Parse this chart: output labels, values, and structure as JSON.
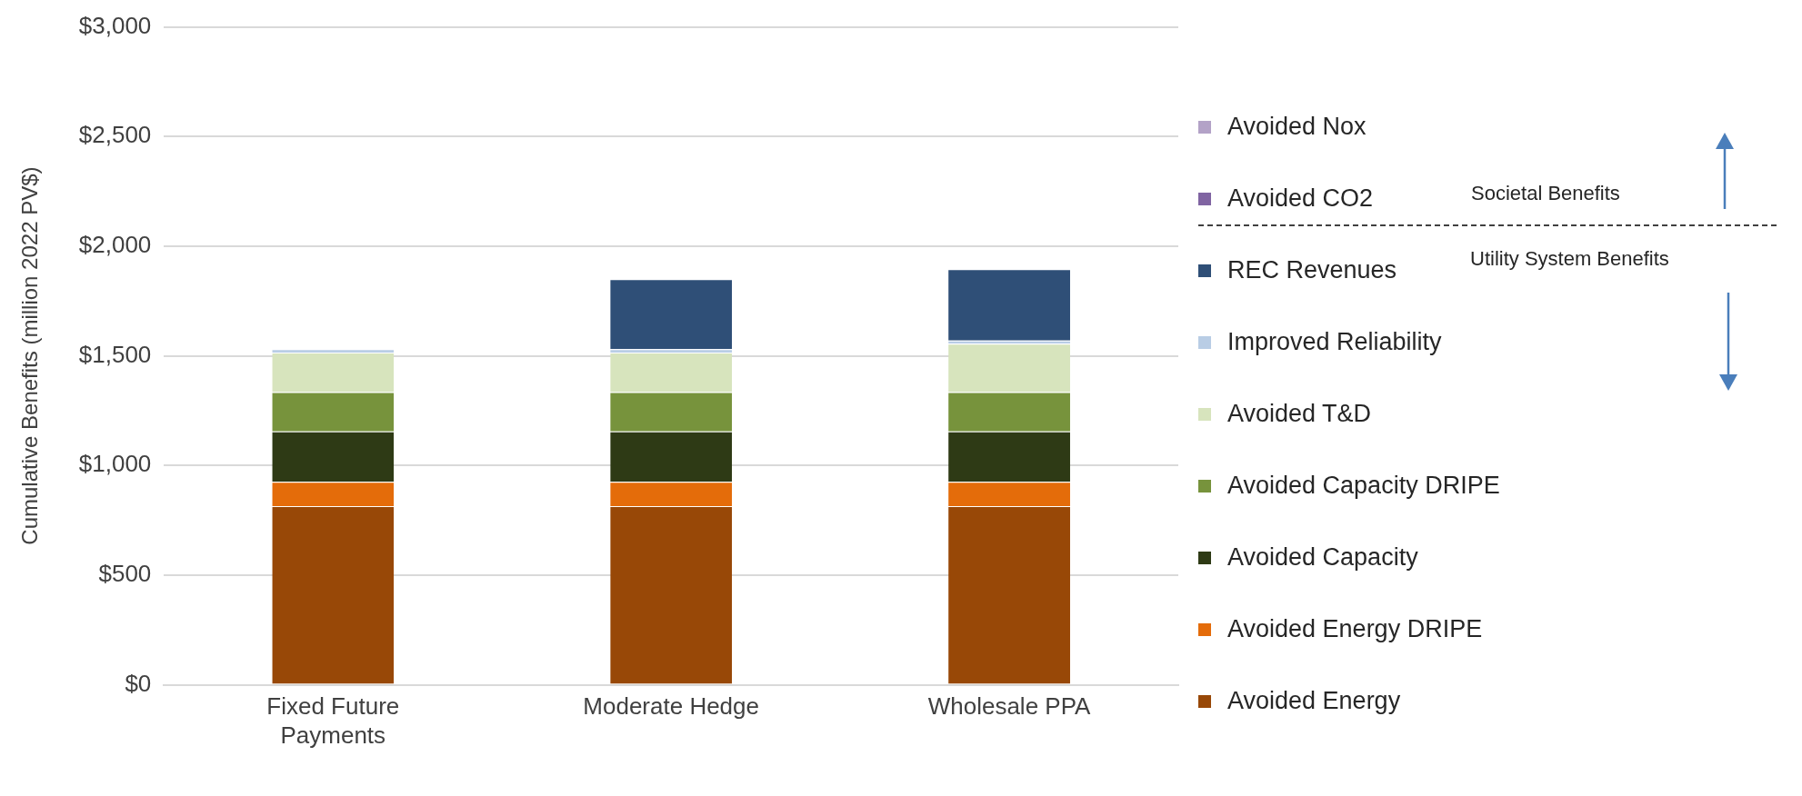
{
  "chart_data": {
    "type": "bar",
    "stacked": true,
    "ylabel": "Cumulative Benefits (million 2022 PV$)",
    "categories": [
      "Fixed Future Payments",
      "Moderate Hedge",
      "Wholesale PPA"
    ],
    "series": [
      {
        "name": "Avoided Energy",
        "color": "#984807",
        "values": [
          815,
          815,
          815
        ]
      },
      {
        "name": "Avoided Energy DRIPE",
        "color": "#e46c0a",
        "values": [
          110,
          110,
          110
        ]
      },
      {
        "name": "Avoided Capacity",
        "color": "#2e3a15",
        "values": [
          230,
          230,
          230
        ]
      },
      {
        "name": "Avoided Capacity DRIPE",
        "color": "#77933c",
        "values": [
          180,
          180,
          180
        ]
      },
      {
        "name": "Avoided T&D",
        "color": "#d7e4bd",
        "values": [
          180,
          180,
          220
        ]
      },
      {
        "name": "Improved Reliability",
        "color": "#b9cde5",
        "values": [
          15,
          15,
          15
        ]
      },
      {
        "name": "REC Revenues",
        "color": "#2f4f77",
        "values": [
          0,
          320,
          325
        ]
      },
      {
        "name": "Avoided CO2",
        "color": "#8064a2",
        "values": [
          0,
          0,
          0
        ]
      },
      {
        "name": "Avoided Nox",
        "color": "#b3a2c7",
        "values": [
          0,
          0,
          0
        ]
      }
    ],
    "ylim": [
      0,
      3000
    ],
    "yticks": [
      {
        "value": 0,
        "label": "$0"
      },
      {
        "value": 500,
        "label": "$500"
      },
      {
        "value": 1000,
        "label": "$1,000"
      },
      {
        "value": 1500,
        "label": "$1,500"
      },
      {
        "value": 2000,
        "label": "$2,000"
      },
      {
        "value": 2500,
        "label": "$2,500"
      },
      {
        "value": 3000,
        "label": "$3,000"
      }
    ],
    "grid": "y",
    "legend": "right",
    "annotations": [
      "Societal Benefits",
      "Utility System Benefits"
    ]
  }
}
